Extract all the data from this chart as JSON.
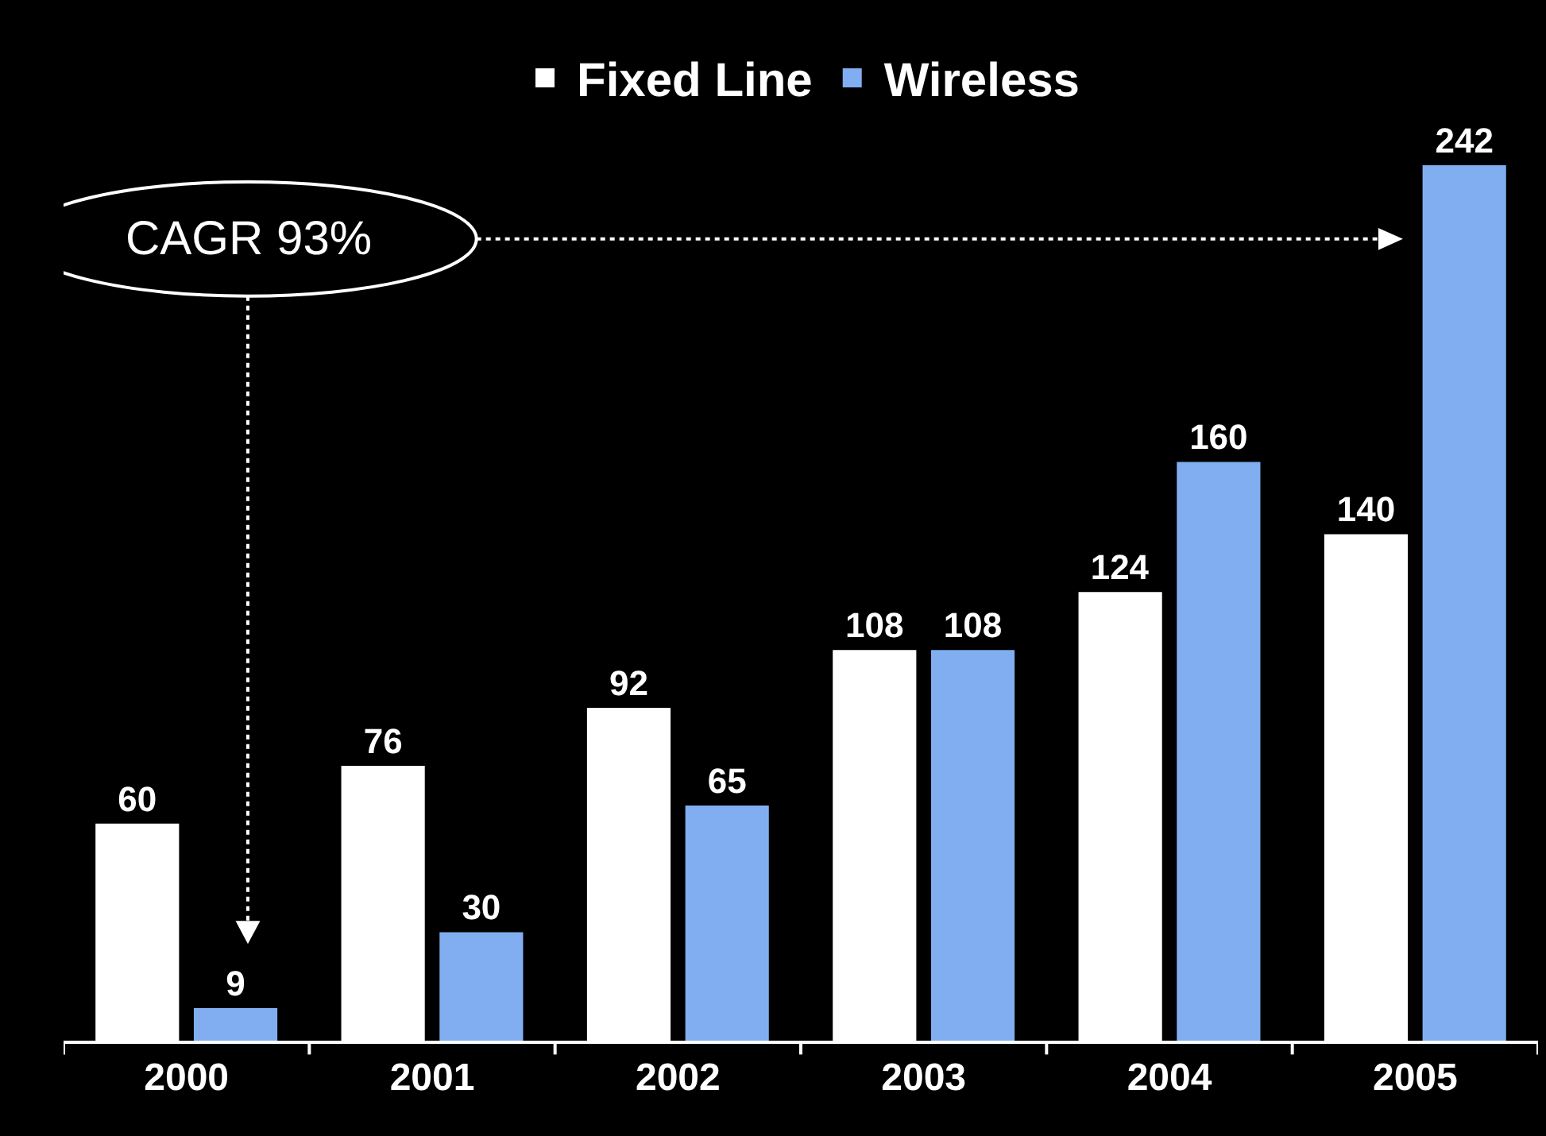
{
  "chart_data": {
    "type": "bar",
    "categories": [
      "2000",
      "2001",
      "2002",
      "2003",
      "2004",
      "2005"
    ],
    "series": [
      {
        "name": "Fixed Line",
        "color": "#ffffff",
        "values": [
          60,
          76,
          92,
          108,
          124,
          140
        ]
      },
      {
        "name": "Wireless",
        "color": "#80aef0",
        "values": [
          9,
          30,
          65,
          108,
          160,
          242
        ]
      }
    ],
    "data_labels": true,
    "legend": "top",
    "tick_labels": "x",
    "annotations": [
      "CAGR 93%"
    ]
  }
}
